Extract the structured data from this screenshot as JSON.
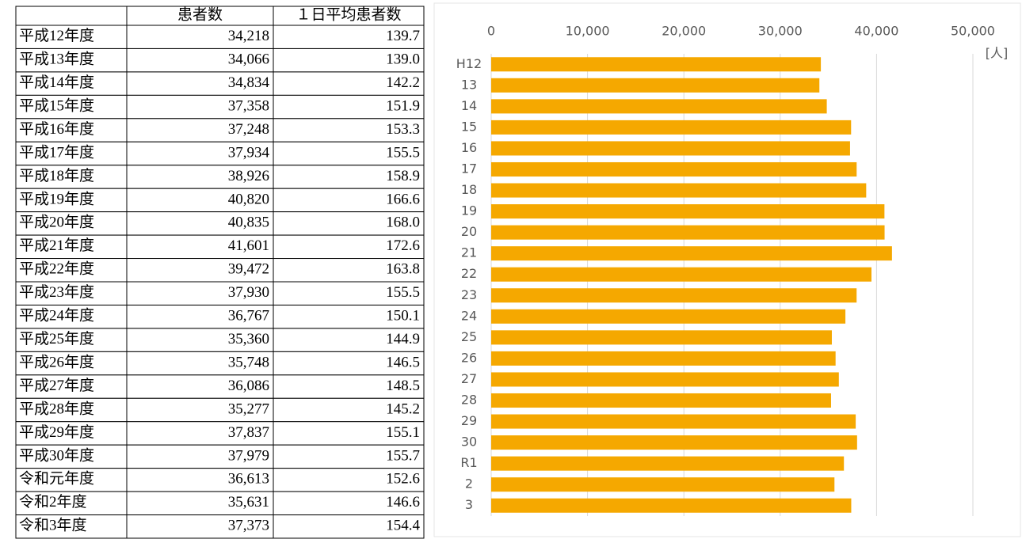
{
  "table": {
    "headers": [
      "患者数",
      "１日平均患者数"
    ],
    "rows": [
      [
        "平成12年度",
        "34,218",
        "139.7"
      ],
      [
        "平成13年度",
        "34,066",
        "139.0"
      ],
      [
        "平成14年度",
        "34,834",
        "142.2"
      ],
      [
        "平成15年度",
        "37,358",
        "151.9"
      ],
      [
        "平成16年度",
        "37,248",
        "153.3"
      ],
      [
        "平成17年度",
        "37,934",
        "155.5"
      ],
      [
        "平成18年度",
        "38,926",
        "158.9"
      ],
      [
        "平成19年度",
        "40,820",
        "166.6"
      ],
      [
        "平成20年度",
        "40,835",
        "168.0"
      ],
      [
        "平成21年度",
        "41,601",
        "172.6"
      ],
      [
        "平成22年度",
        "39,472",
        "163.8"
      ],
      [
        "平成23年度",
        "37,930",
        "155.5"
      ],
      [
        "平成24年度",
        "36,767",
        "150.1"
      ],
      [
        "平成25年度",
        "35,360",
        "144.9"
      ],
      [
        "平成26年度",
        "35,748",
        "146.5"
      ],
      [
        "平成27年度",
        "36,086",
        "148.5"
      ],
      [
        "平成28年度",
        "35,277",
        "145.2"
      ],
      [
        "平成29年度",
        "37,837",
        "155.1"
      ],
      [
        "平成30年度",
        "37,979",
        "155.7"
      ],
      [
        "令和元年度",
        "36,613",
        "152.6"
      ],
      [
        "令和2年度",
        "35,631",
        "146.6"
      ],
      [
        "令和3年度",
        "37,373",
        "154.4"
      ]
    ]
  },
  "chart_data": {
    "type": "bar",
    "orientation": "horizontal",
    "categories": [
      "H12",
      "13",
      "14",
      "15",
      "16",
      "17",
      "18",
      "19",
      "20",
      "21",
      "22",
      "23",
      "24",
      "25",
      "26",
      "27",
      "28",
      "29",
      "30",
      "R1",
      "2",
      "3"
    ],
    "values": [
      34218,
      34066,
      34834,
      37358,
      37248,
      37934,
      38926,
      40820,
      40835,
      41601,
      39472,
      37930,
      36767,
      35360,
      35748,
      36086,
      35277,
      37837,
      37979,
      36613,
      35631,
      37373
    ],
    "color": "#f5a800",
    "xlim": [
      0,
      50000
    ],
    "xticks": [
      0,
      {
        "value": 10000,
        "label": "10,000"
      },
      {
        "value": 20000,
        "label": "20,000"
      },
      {
        "value": 30000,
        "label": "30,000"
      },
      {
        "value": 40000,
        "label": "40,000"
      },
      {
        "value": 50000,
        "label": "50,000"
      }
    ],
    "x_unit": "[人]",
    "grid": true
  }
}
